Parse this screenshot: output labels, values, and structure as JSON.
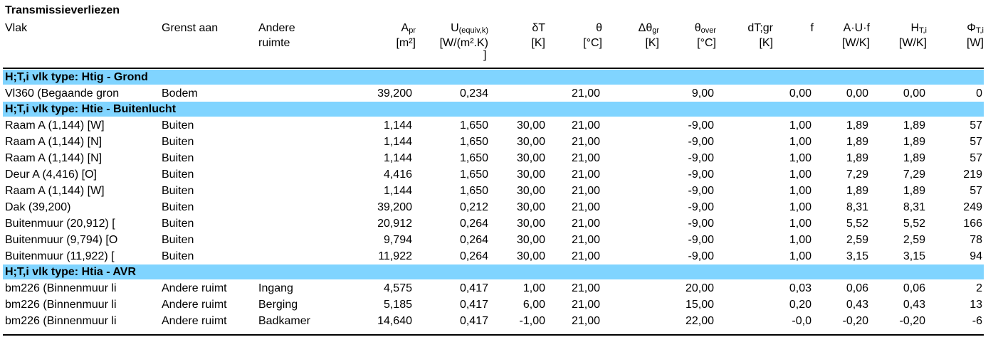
{
  "title": "Transmissieverliezen",
  "headers": {
    "vlak": "Vlak",
    "grenst_aan": "Grenst aan",
    "andere_l1": "Andere",
    "andere_l2": "ruimte",
    "a_main": "A",
    "a_sub": "pr",
    "a_unit": "[m²]",
    "u_main": "U",
    "u_sub": "(equiv,k)",
    "u_unit": "[W/(m².K)",
    "u_unit2": "]",
    "dt_main": "δT",
    "dt_unit": "[K]",
    "theta_main": "θ",
    "theta_unit": "[°C]",
    "dtheta_main": "Δθ",
    "dtheta_sub": "gr",
    "dtheta_unit": "[K]",
    "thover_main": "θ",
    "thover_sub": "over",
    "thover_unit": "[°C]",
    "dtgr_main": "dT;gr",
    "dtgr_unit": "[K]",
    "f_main": "f",
    "auf_main": "A·U·f",
    "auf_unit": "[W/K]",
    "ht_main": "H",
    "ht_sub": "T,i",
    "ht_unit": "[W/K]",
    "phi_main": "Φ",
    "phi_sub": "T,i",
    "phi_unit": "[W]"
  },
  "groups": [
    {
      "label": "H;T,i vlk type: Htig - Grond",
      "rows": [
        {
          "vlak": "Vl360 (Begaande gron",
          "grenst": "Bodem",
          "andere": "",
          "a": "39,200",
          "u": "0,234",
          "dt": "",
          "theta": "21,00",
          "dtheta": "",
          "thover": "9,00",
          "dtgr": "",
          "f": "0,00",
          "auf": "0,00",
          "ht": "0,00",
          "phi": "0"
        }
      ]
    },
    {
      "label": "H;T,i vlk type: Htie - Buitenlucht",
      "rows": [
        {
          "vlak": "Raam A (1,144) [W]",
          "grenst": "Buiten",
          "andere": "",
          "a": "1,144",
          "u": "1,650",
          "dt": "30,00",
          "theta": "21,00",
          "dtheta": "",
          "thover": "-9,00",
          "dtgr": "",
          "f": "1,00",
          "auf": "1,89",
          "ht": "1,89",
          "phi": "57"
        },
        {
          "vlak": "Raam A (1,144) [N]",
          "grenst": "Buiten",
          "andere": "",
          "a": "1,144",
          "u": "1,650",
          "dt": "30,00",
          "theta": "21,00",
          "dtheta": "",
          "thover": "-9,00",
          "dtgr": "",
          "f": "1,00",
          "auf": "1,89",
          "ht": "1,89",
          "phi": "57"
        },
        {
          "vlak": "Raam A (1,144) [N]",
          "grenst": "Buiten",
          "andere": "",
          "a": "1,144",
          "u": "1,650",
          "dt": "30,00",
          "theta": "21,00",
          "dtheta": "",
          "thover": "-9,00",
          "dtgr": "",
          "f": "1,00",
          "auf": "1,89",
          "ht": "1,89",
          "phi": "57"
        },
        {
          "vlak": "Deur A (4,416) [O]",
          "grenst": "Buiten",
          "andere": "",
          "a": "4,416",
          "u": "1,650",
          "dt": "30,00",
          "theta": "21,00",
          "dtheta": "",
          "thover": "-9,00",
          "dtgr": "",
          "f": "1,00",
          "auf": "7,29",
          "ht": "7,29",
          "phi": "219"
        },
        {
          "vlak": "Raam A (1,144) [W]",
          "grenst": "Buiten",
          "andere": "",
          "a": "1,144",
          "u": "1,650",
          "dt": "30,00",
          "theta": "21,00",
          "dtheta": "",
          "thover": "-9,00",
          "dtgr": "",
          "f": "1,00",
          "auf": "1,89",
          "ht": "1,89",
          "phi": "57"
        },
        {
          "vlak": "Dak (39,200)",
          "grenst": "Buiten",
          "andere": "",
          "a": "39,200",
          "u": "0,212",
          "dt": "30,00",
          "theta": "21,00",
          "dtheta": "",
          "thover": "-9,00",
          "dtgr": "",
          "f": "1,00",
          "auf": "8,31",
          "ht": "8,31",
          "phi": "249"
        },
        {
          "vlak": "Buitenmuur (20,912) [",
          "grenst": "Buiten",
          "andere": "",
          "a": "20,912",
          "u": "0,264",
          "dt": "30,00",
          "theta": "21,00",
          "dtheta": "",
          "thover": "-9,00",
          "dtgr": "",
          "f": "1,00",
          "auf": "5,52",
          "ht": "5,52",
          "phi": "166"
        },
        {
          "vlak": "Buitenmuur (9,794) [O",
          "grenst": "Buiten",
          "andere": "",
          "a": "9,794",
          "u": "0,264",
          "dt": "30,00",
          "theta": "21,00",
          "dtheta": "",
          "thover": "-9,00",
          "dtgr": "",
          "f": "1,00",
          "auf": "2,59",
          "ht": "2,59",
          "phi": "78"
        },
        {
          "vlak": "Buitenmuur (11,922) [",
          "grenst": "Buiten",
          "andere": "",
          "a": "11,922",
          "u": "0,264",
          "dt": "30,00",
          "theta": "21,00",
          "dtheta": "",
          "thover": "-9,00",
          "dtgr": "",
          "f": "1,00",
          "auf": "3,15",
          "ht": "3,15",
          "phi": "94"
        }
      ]
    },
    {
      "label": "H;T,i vlk type: Htia - AVR",
      "rows": [
        {
          "vlak": "bm226 (Binnenmuur li",
          "grenst": "Andere ruimt",
          "andere": "Ingang",
          "a": "4,575",
          "u": "0,417",
          "dt": "1,00",
          "theta": "21,00",
          "dtheta": "",
          "thover": "20,00",
          "dtgr": "",
          "f": "0,03",
          "auf": "0,06",
          "ht": "0,06",
          "phi": "2"
        },
        {
          "vlak": "bm226 (Binnenmuur li",
          "grenst": "Andere ruimt",
          "andere": "Berging",
          "a": "5,185",
          "u": "0,417",
          "dt": "6,00",
          "theta": "21,00",
          "dtheta": "",
          "thover": "15,00",
          "dtgr": "",
          "f": "0,20",
          "auf": "0,43",
          "ht": "0,43",
          "phi": "13"
        },
        {
          "vlak": "bm226 (Binnenmuur li",
          "grenst": "Andere ruimt",
          "andere": "Badkamer",
          "a": "14,640",
          "u": "0,417",
          "dt": "-1,00",
          "theta": "21,00",
          "dtheta": "",
          "thover": "22,00",
          "dtgr": "",
          "f": "-0,0",
          "auf": "-0,20",
          "ht": "-0,20",
          "phi": "-6"
        }
      ]
    }
  ],
  "colors": {
    "band": "#80d4ff",
    "text": "#000000"
  }
}
